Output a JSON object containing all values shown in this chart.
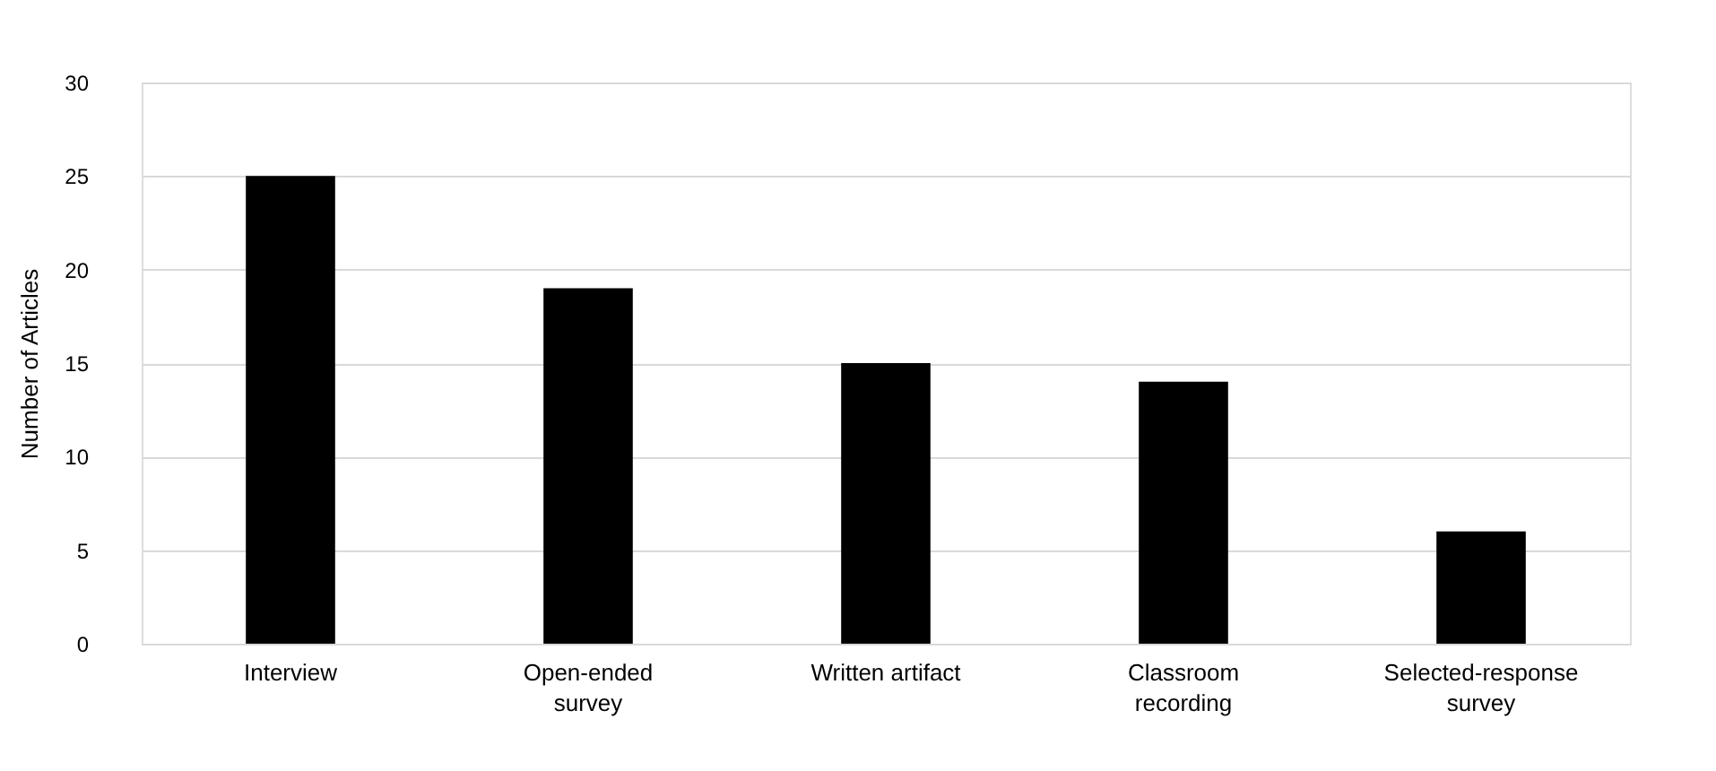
{
  "chart_data": {
    "type": "bar",
    "ylabel": "Number of Articles",
    "categories": [
      "Interview",
      "Open-ended survey",
      "Written artifact",
      "Classroom recording",
      "Selected-response survey"
    ],
    "values": [
      25,
      19,
      15,
      14,
      6
    ],
    "color": "#000000",
    "ylim": [
      0,
      30
    ],
    "yticks": [
      0,
      5,
      10,
      15,
      20,
      25,
      30
    ],
    "grid": "y"
  }
}
